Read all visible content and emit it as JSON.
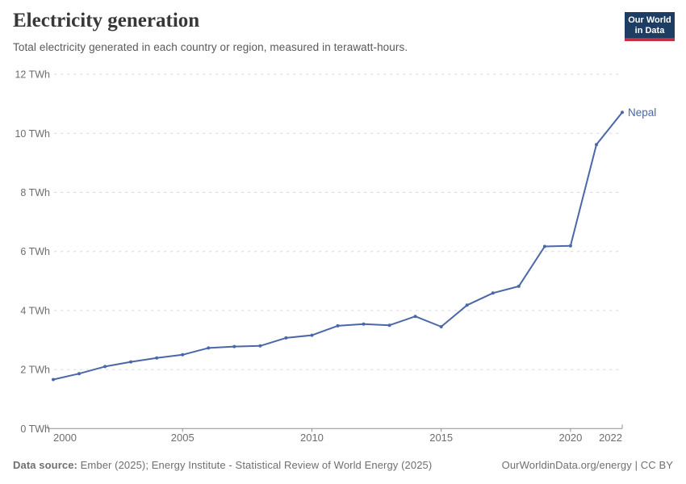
{
  "header": {
    "title": "Electricity generation",
    "subtitle": "Total electricity generated in each country or region, measured in terawatt-hours.",
    "logo": {
      "line1": "Our World",
      "line2": "in Data"
    }
  },
  "chart_data": {
    "type": "line",
    "title": "Electricity generation",
    "subtitle": "Total electricity generated in each country or region, measured in terawatt-hours.",
    "unit": "TWh",
    "xlim": [
      2000,
      2022
    ],
    "ylim": [
      0,
      12
    ],
    "x_ticks": [
      2000,
      2005,
      2010,
      2015,
      2020,
      2022
    ],
    "y_ticks": [
      0,
      2,
      4,
      6,
      8,
      10,
      12
    ],
    "y_tick_format": "{v} TWh",
    "grid": "horizontal-dashed",
    "legend_position": "end-of-line-label",
    "series": [
      {
        "name": "Nepal",
        "color": "#4a67a8",
        "x": [
          2000,
          2001,
          2002,
          2003,
          2004,
          2005,
          2006,
          2007,
          2008,
          2009,
          2010,
          2011,
          2012,
          2013,
          2014,
          2015,
          2016,
          2017,
          2018,
          2019,
          2020,
          2021,
          2022
        ],
        "values": [
          1.66,
          1.86,
          2.1,
          2.26,
          2.39,
          2.5,
          2.73,
          2.78,
          2.8,
          3.07,
          3.16,
          3.48,
          3.54,
          3.5,
          3.8,
          3.45,
          4.18,
          4.59,
          4.82,
          6.17,
          6.19,
          9.62,
          10.71
        ]
      }
    ]
  },
  "footer": {
    "source_label": "Data source:",
    "source_text": " Ember (2025); Energy Institute - Statistical Review of World Energy (2025)",
    "right_text": "OurWorldinData.org/energy | CC BY"
  },
  "colors": {
    "line": "#4a67a8",
    "grid": "#dadada",
    "axis": "#8f8f8f",
    "tick_label": "#6d6d6d",
    "title": "#383636",
    "subtitle": "#595959",
    "footer": "#6f6f6f",
    "logo_bg": "#1d3d63",
    "logo_stripe": "#c12f41"
  }
}
